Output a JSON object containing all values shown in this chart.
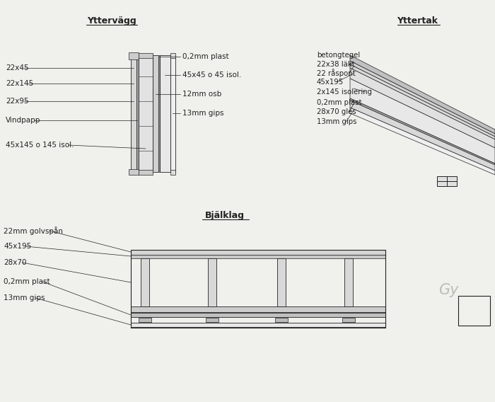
{
  "bg_color": "#f0f0ec",
  "line_color": "#222222",
  "title_yttervagg": "Yttervägg",
  "title_yttertak": "Yttertak",
  "title_bjalklag": "Bjälklag",
  "yttervagg_left_labels": [
    "22x45",
    "22x145",
    "22x95",
    "Vindpapp",
    "45x145 o 145 isol."
  ],
  "yttervagg_right_labels": [
    "0,2mm plast",
    "45x45 o 45 isol.",
    "12mm osb",
    "13mm gips"
  ],
  "yttertak_labels": [
    "betongtegel",
    "22x38 läkt",
    "22 råspont",
    "45x195",
    "2x145 isolering",
    "0,2mm plast",
    "28x70 gles",
    "13mm gips"
  ],
  "bjalklag_labels": [
    "22mm golvspån",
    "45x195",
    "28x70",
    "0,2mm plast",
    "13mm gips"
  ],
  "watermark": "Gy"
}
